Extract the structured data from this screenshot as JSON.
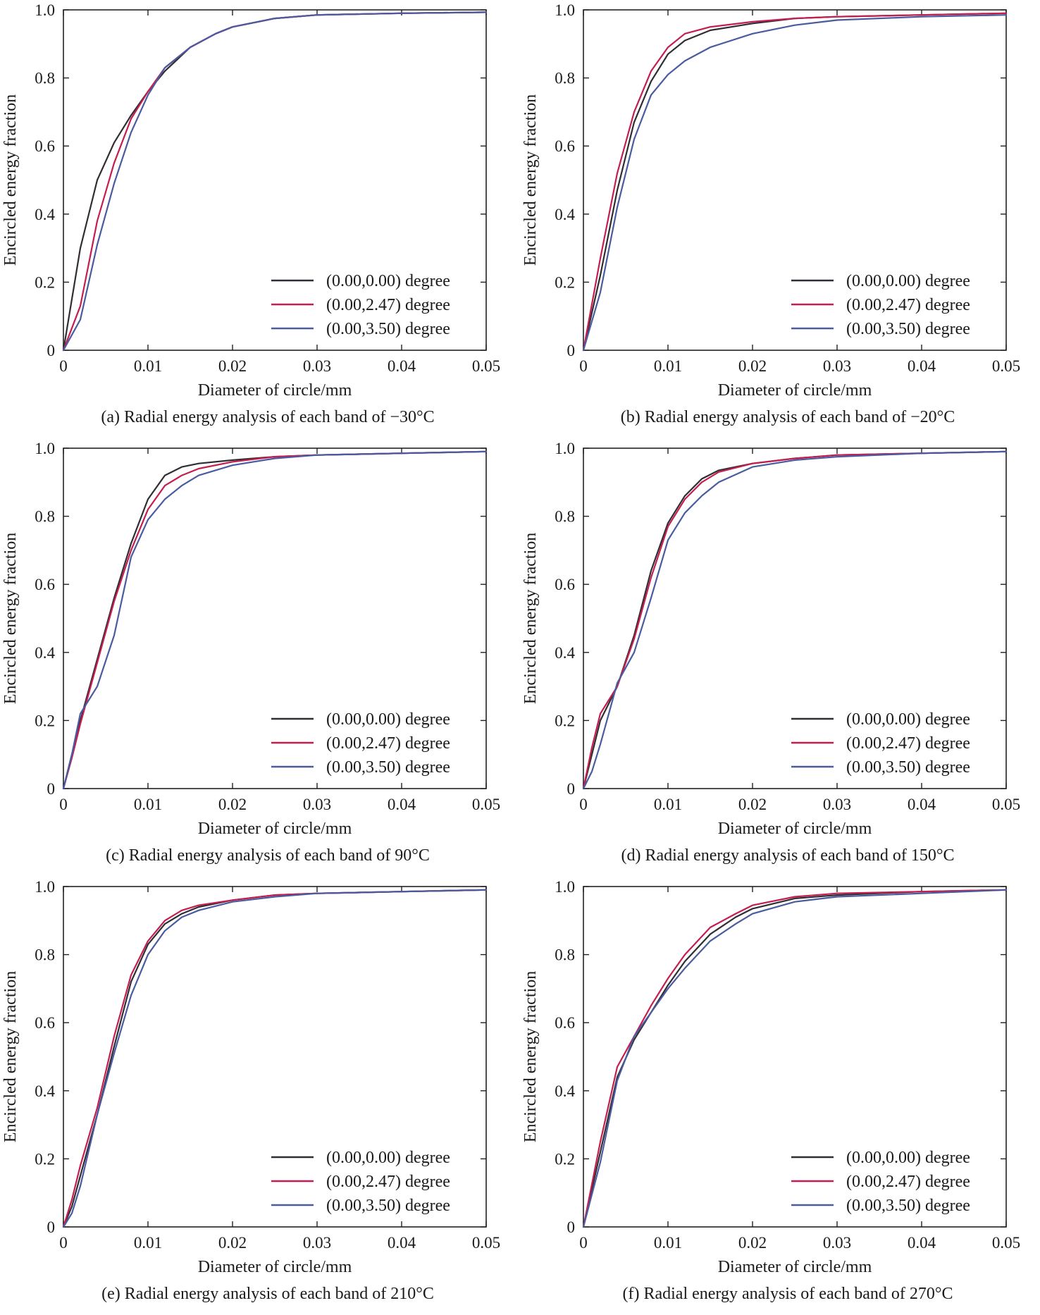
{
  "colors": {
    "series": [
      "#2e2e34",
      "#c41e50",
      "#4a5ba0"
    ],
    "axis": "#222222",
    "text": "#1a1a1a",
    "background": "#ffffff"
  },
  "chart_data": [
    {
      "type": "line",
      "caption": "(a) Radial energy analysis of each band of −30°C",
      "xlabel": "Diameter of circle/mm",
      "ylabel": "Encircled energy fraction",
      "xlim": [
        0,
        0.05
      ],
      "ylim": [
        0,
        1.0
      ],
      "xticks": [
        "0",
        "0.01",
        "0.02",
        "0.03",
        "0.04",
        "0.05"
      ],
      "yticks": [
        "0",
        "0.2",
        "0.4",
        "0.6",
        "0.8",
        "1.0"
      ],
      "legend_position": "bottom-right",
      "series": [
        {
          "name": "(0.00,0.00) degree",
          "x": [
            0,
            0.002,
            0.004,
            0.006,
            0.008,
            0.01,
            0.012,
            0.015,
            0.018,
            0.02,
            0.025,
            0.03,
            0.04,
            0.05
          ],
          "y": [
            0,
            0.3,
            0.5,
            0.61,
            0.69,
            0.76,
            0.82,
            0.89,
            0.93,
            0.95,
            0.975,
            0.985,
            0.99,
            0.993
          ]
        },
        {
          "name": "(0.00,2.47) degree",
          "x": [
            0,
            0.002,
            0.004,
            0.006,
            0.008,
            0.01,
            0.012,
            0.015,
            0.018,
            0.02,
            0.025,
            0.03,
            0.04,
            0.05
          ],
          "y": [
            0,
            0.13,
            0.38,
            0.55,
            0.68,
            0.76,
            0.83,
            0.89,
            0.93,
            0.95,
            0.975,
            0.985,
            0.99,
            0.993
          ]
        },
        {
          "name": "(0.00,3.50) degree",
          "x": [
            0,
            0.002,
            0.004,
            0.006,
            0.008,
            0.01,
            0.012,
            0.015,
            0.018,
            0.02,
            0.025,
            0.03,
            0.04,
            0.05
          ],
          "y": [
            0,
            0.09,
            0.31,
            0.49,
            0.64,
            0.75,
            0.83,
            0.89,
            0.93,
            0.95,
            0.975,
            0.985,
            0.99,
            0.993
          ]
        }
      ]
    },
    {
      "type": "line",
      "caption": "(b) Radial energy analysis of each band of −20°C",
      "xlabel": "Diameter of circle/mm",
      "ylabel": "Encircled energy fraction",
      "xlim": [
        0,
        0.05
      ],
      "ylim": [
        0,
        1.0
      ],
      "xticks": [
        "0",
        "0.01",
        "0.02",
        "0.03",
        "0.04",
        "0.05"
      ],
      "yticks": [
        "0",
        "0.2",
        "0.4",
        "0.6",
        "0.8",
        "1.0"
      ],
      "legend_position": "bottom-right",
      "series": [
        {
          "name": "(0.00,0.00) degree",
          "x": [
            0,
            0.002,
            0.004,
            0.006,
            0.008,
            0.01,
            0.012,
            0.015,
            0.02,
            0.025,
            0.03,
            0.04,
            0.05
          ],
          "y": [
            0,
            0.22,
            0.47,
            0.67,
            0.79,
            0.87,
            0.91,
            0.94,
            0.96,
            0.975,
            0.98,
            0.985,
            0.99
          ]
        },
        {
          "name": "(0.00,2.47) degree",
          "x": [
            0,
            0.002,
            0.004,
            0.006,
            0.008,
            0.01,
            0.012,
            0.015,
            0.02,
            0.025,
            0.03,
            0.04,
            0.05
          ],
          "y": [
            0,
            0.27,
            0.52,
            0.7,
            0.82,
            0.89,
            0.93,
            0.95,
            0.965,
            0.975,
            0.98,
            0.985,
            0.99
          ]
        },
        {
          "name": "(0.00,3.50) degree",
          "x": [
            0,
            0.002,
            0.004,
            0.006,
            0.008,
            0.01,
            0.012,
            0.015,
            0.02,
            0.025,
            0.03,
            0.04,
            0.05
          ],
          "y": [
            0,
            0.17,
            0.42,
            0.62,
            0.75,
            0.81,
            0.85,
            0.89,
            0.93,
            0.955,
            0.97,
            0.98,
            0.985
          ]
        }
      ]
    },
    {
      "type": "line",
      "caption": "(c) Radial energy analysis of each band of 90°C",
      "xlabel": "Diameter of circle/mm",
      "ylabel": "Encircled energy fraction",
      "xlim": [
        0,
        0.05
      ],
      "ylim": [
        0,
        1.0
      ],
      "xticks": [
        "0",
        "0.01",
        "0.02",
        "0.03",
        "0.04",
        "0.05"
      ],
      "yticks": [
        "0",
        "0.2",
        "0.4",
        "0.6",
        "0.8",
        "1.0"
      ],
      "legend_position": "bottom-right",
      "series": [
        {
          "name": "(0.00,0.00) degree",
          "x": [
            0,
            0.001,
            0.002,
            0.004,
            0.006,
            0.008,
            0.01,
            0.012,
            0.014,
            0.016,
            0.02,
            0.025,
            0.03,
            0.04,
            0.05
          ],
          "y": [
            0,
            0.1,
            0.2,
            0.38,
            0.56,
            0.72,
            0.85,
            0.92,
            0.945,
            0.955,
            0.965,
            0.975,
            0.98,
            0.985,
            0.99
          ]
        },
        {
          "name": "(0.00,2.47) degree",
          "x": [
            0,
            0.001,
            0.002,
            0.004,
            0.006,
            0.008,
            0.01,
            0.012,
            0.014,
            0.016,
            0.02,
            0.025,
            0.03,
            0.04,
            0.05
          ],
          "y": [
            0,
            0.09,
            0.19,
            0.37,
            0.55,
            0.7,
            0.82,
            0.89,
            0.92,
            0.94,
            0.96,
            0.975,
            0.98,
            0.985,
            0.99
          ]
        },
        {
          "name": "(0.00,3.50) degree",
          "x": [
            0,
            0.001,
            0.002,
            0.004,
            0.006,
            0.008,
            0.01,
            0.012,
            0.014,
            0.016,
            0.02,
            0.025,
            0.03,
            0.04,
            0.05
          ],
          "y": [
            0,
            0.1,
            0.22,
            0.3,
            0.45,
            0.68,
            0.79,
            0.85,
            0.89,
            0.92,
            0.95,
            0.97,
            0.98,
            0.985,
            0.99
          ]
        }
      ]
    },
    {
      "type": "line",
      "caption": "(d) Radial energy analysis of each band of 150°C",
      "xlabel": "Diameter of circle/mm",
      "ylabel": "Encircled energy fraction",
      "xlim": [
        0,
        0.05
      ],
      "ylim": [
        0,
        1.0
      ],
      "xticks": [
        "0",
        "0.01",
        "0.02",
        "0.03",
        "0.04",
        "0.05"
      ],
      "yticks": [
        "0",
        "0.2",
        "0.4",
        "0.6",
        "0.8",
        "1.0"
      ],
      "legend_position": "bottom-right",
      "series": [
        {
          "name": "(0.00,0.00) degree",
          "x": [
            0,
            0.001,
            0.002,
            0.004,
            0.006,
            0.008,
            0.01,
            0.012,
            0.014,
            0.016,
            0.02,
            0.025,
            0.03,
            0.04,
            0.05
          ],
          "y": [
            0,
            0.1,
            0.2,
            0.3,
            0.45,
            0.64,
            0.78,
            0.86,
            0.91,
            0.935,
            0.955,
            0.97,
            0.98,
            0.985,
            0.99
          ]
        },
        {
          "name": "(0.00,2.47) degree",
          "x": [
            0,
            0.001,
            0.002,
            0.004,
            0.006,
            0.008,
            0.01,
            0.012,
            0.014,
            0.016,
            0.02,
            0.025,
            0.03,
            0.04,
            0.05
          ],
          "y": [
            0,
            0.12,
            0.22,
            0.3,
            0.44,
            0.62,
            0.77,
            0.85,
            0.9,
            0.93,
            0.955,
            0.97,
            0.98,
            0.985,
            0.99
          ]
        },
        {
          "name": "(0.00,3.50) degree",
          "x": [
            0,
            0.001,
            0.002,
            0.004,
            0.006,
            0.008,
            0.01,
            0.012,
            0.014,
            0.016,
            0.02,
            0.025,
            0.03,
            0.04,
            0.05
          ],
          "y": [
            0,
            0.05,
            0.13,
            0.31,
            0.4,
            0.56,
            0.73,
            0.81,
            0.86,
            0.9,
            0.945,
            0.965,
            0.975,
            0.985,
            0.99
          ]
        }
      ]
    },
    {
      "type": "line",
      "caption": "(e) Radial energy analysis of each band of 210°C",
      "xlabel": "Diameter of circle/mm",
      "ylabel": "Encircled energy fraction",
      "xlim": [
        0,
        0.05
      ],
      "ylim": [
        0,
        1.0
      ],
      "xticks": [
        "0",
        "0.01",
        "0.02",
        "0.03",
        "0.04",
        "0.05"
      ],
      "yticks": [
        "0",
        "0.2",
        "0.4",
        "0.6",
        "0.8",
        "1.0"
      ],
      "legend_position": "bottom-right",
      "series": [
        {
          "name": "(0.00,0.00) degree",
          "x": [
            0,
            0.001,
            0.002,
            0.004,
            0.006,
            0.008,
            0.01,
            0.012,
            0.014,
            0.016,
            0.02,
            0.025,
            0.03,
            0.04,
            0.05
          ],
          "y": [
            0,
            0.06,
            0.15,
            0.33,
            0.53,
            0.72,
            0.83,
            0.89,
            0.92,
            0.94,
            0.96,
            0.975,
            0.98,
            0.985,
            0.99
          ]
        },
        {
          "name": "(0.00,2.47) degree",
          "x": [
            0,
            0.001,
            0.002,
            0.004,
            0.006,
            0.008,
            0.01,
            0.012,
            0.014,
            0.016,
            0.02,
            0.025,
            0.03,
            0.04,
            0.05
          ],
          "y": [
            0,
            0.08,
            0.18,
            0.35,
            0.56,
            0.74,
            0.84,
            0.9,
            0.93,
            0.945,
            0.96,
            0.975,
            0.98,
            0.985,
            0.99
          ]
        },
        {
          "name": "(0.00,3.50) degree",
          "x": [
            0,
            0.001,
            0.002,
            0.004,
            0.006,
            0.008,
            0.01,
            0.012,
            0.014,
            0.016,
            0.02,
            0.025,
            0.03,
            0.04,
            0.05
          ],
          "y": [
            0,
            0.04,
            0.12,
            0.33,
            0.51,
            0.68,
            0.8,
            0.87,
            0.91,
            0.93,
            0.955,
            0.97,
            0.98,
            0.985,
            0.99
          ]
        }
      ]
    },
    {
      "type": "line",
      "caption": "(f) Radial energy analysis of each band of 270°C",
      "xlabel": "Diameter of circle/mm",
      "ylabel": "Encircled energy fraction",
      "xlim": [
        0,
        0.05
      ],
      "ylim": [
        0,
        1.0
      ],
      "xticks": [
        "0",
        "0.01",
        "0.02",
        "0.03",
        "0.04",
        "0.05"
      ],
      "yticks": [
        "0",
        "0.2",
        "0.4",
        "0.6",
        "0.8",
        "1.0"
      ],
      "legend_position": "bottom-right",
      "series": [
        {
          "name": "(0.00,0.00) degree",
          "x": [
            0,
            0.002,
            0.004,
            0.006,
            0.008,
            0.01,
            0.012,
            0.015,
            0.018,
            0.02,
            0.025,
            0.03,
            0.04,
            0.05
          ],
          "y": [
            0,
            0.22,
            0.44,
            0.55,
            0.63,
            0.71,
            0.78,
            0.86,
            0.91,
            0.935,
            0.965,
            0.975,
            0.985,
            0.99
          ]
        },
        {
          "name": "(0.00,2.47) degree",
          "x": [
            0,
            0.002,
            0.004,
            0.006,
            0.008,
            0.01,
            0.012,
            0.015,
            0.018,
            0.02,
            0.025,
            0.03,
            0.04,
            0.05
          ],
          "y": [
            0,
            0.25,
            0.47,
            0.56,
            0.65,
            0.73,
            0.8,
            0.88,
            0.92,
            0.945,
            0.97,
            0.98,
            0.985,
            0.99
          ]
        },
        {
          "name": "(0.00,3.50) degree",
          "x": [
            0,
            0.002,
            0.004,
            0.006,
            0.008,
            0.01,
            0.012,
            0.015,
            0.018,
            0.02,
            0.025,
            0.03,
            0.04,
            0.05
          ],
          "y": [
            0,
            0.19,
            0.43,
            0.56,
            0.63,
            0.7,
            0.76,
            0.84,
            0.89,
            0.92,
            0.955,
            0.97,
            0.98,
            0.99
          ]
        }
      ]
    }
  ]
}
